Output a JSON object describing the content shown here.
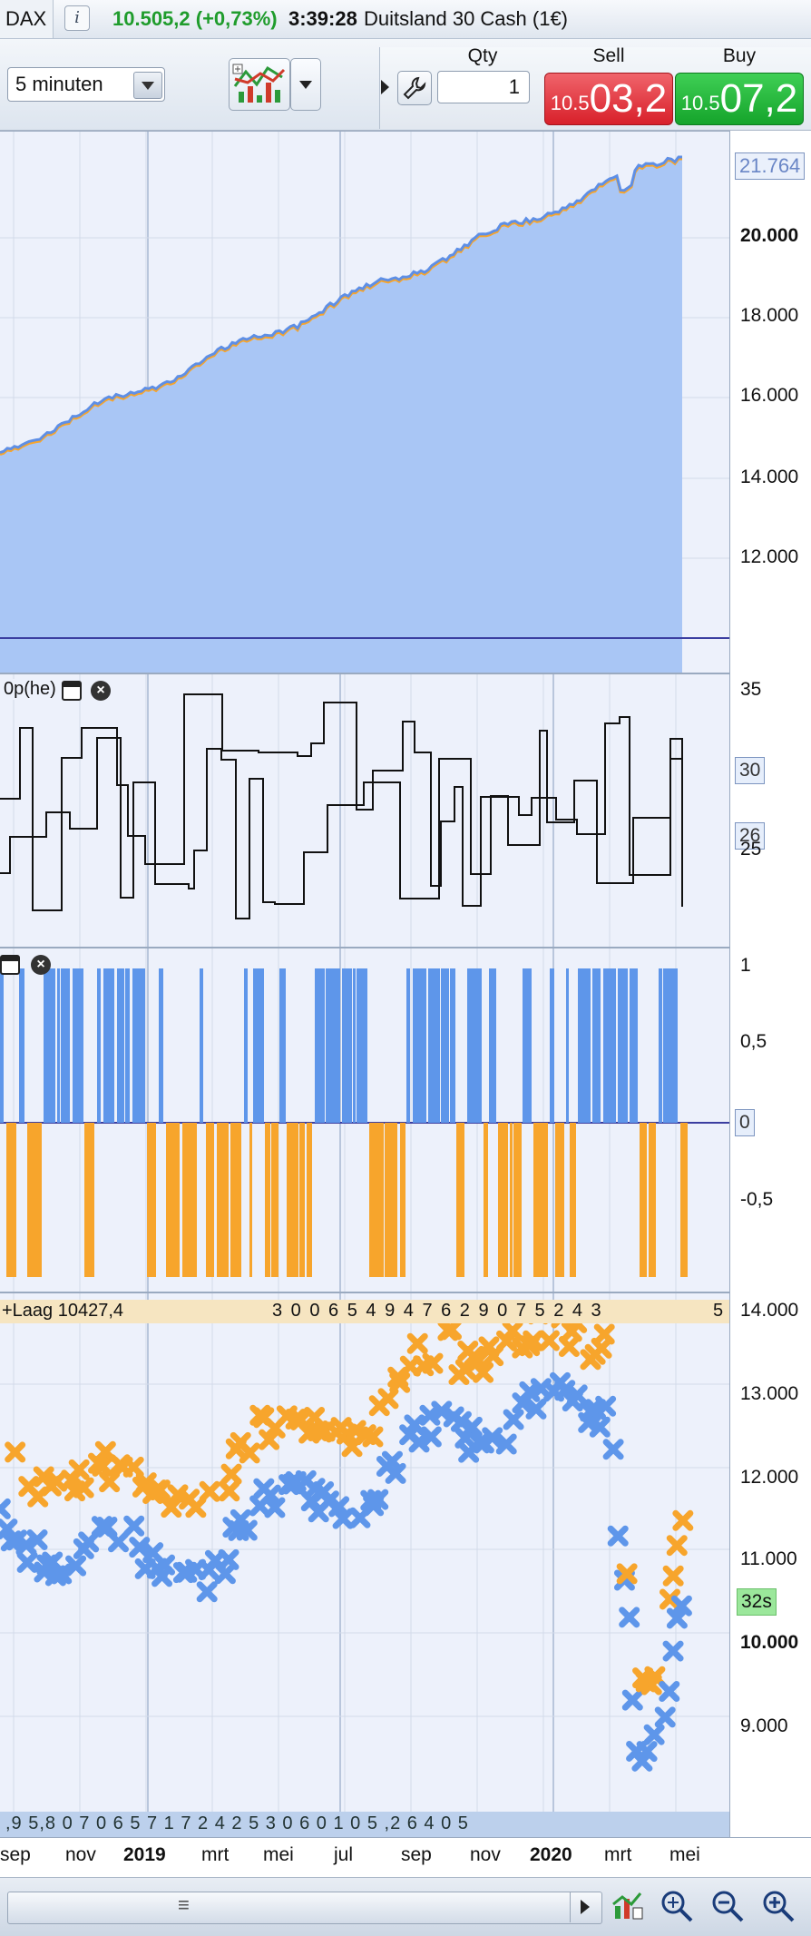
{
  "header": {
    "instrument_code": "DAX",
    "price_change": "10.505,2 (+0,73%)",
    "time": "3:39:28",
    "instrument_name": "Duitsland 30 Cash (1€)"
  },
  "toolbar": {
    "timeframe": "5 minuten",
    "qty_label": "Qty",
    "qty_value": "1",
    "sell_label": "Sell",
    "buy_label": "Buy",
    "sell_prefix": "10.5",
    "sell_main": "03,2",
    "buy_prefix": "10.5",
    "buy_main": "07,2"
  },
  "panels": {
    "equity": {
      "last_value": "21.764",
      "y_ticks": [
        "20.000",
        "18.000",
        "16.000",
        "14.000",
        "12.000"
      ]
    },
    "indicator2": {
      "label": "0p(he)",
      "y_ticks": [
        "35",
        "30",
        "26",
        "25"
      ]
    },
    "indicator3": {
      "y_ticks": [
        "1",
        "0,5",
        "0",
        "-0,5"
      ]
    },
    "price": {
      "label": "+Laag 10427,4",
      "label_digits": "3  0   0   6   5       4   9  4 7   6          2           9     0  7 5  2   4 3",
      "label_digit_right": "5",
      "y_ticks": [
        "14.000",
        "13.000",
        "12.000",
        "11.000",
        "10.000",
        "9.000"
      ],
      "timer": "32s",
      "bottom_digits": ",9    5,8 0 7 0 6 5 7        1          7 2   4 2   5 3 0   6 0           1 0        5  ,2 6     4      0      5"
    }
  },
  "x_axis": [
    {
      "label": "sep",
      "bold": false
    },
    {
      "label": "nov",
      "bold": false
    },
    {
      "label": "2019",
      "bold": true
    },
    {
      "label": "mrt",
      "bold": false
    },
    {
      "label": "mei",
      "bold": false
    },
    {
      "label": "jul",
      "bold": false
    },
    {
      "label": "sep",
      "bold": false
    },
    {
      "label": "nov",
      "bold": false
    },
    {
      "label": "2020",
      "bold": true
    },
    {
      "label": "mrt",
      "bold": false
    },
    {
      "label": "mei",
      "bold": false
    }
  ],
  "colors": {
    "equity_fill": "#a9c6f5",
    "equity_line": "#5e8fe6",
    "orange": "#f7a52c",
    "blue": "#5e96ea",
    "sell": "#e33a42",
    "buy": "#22b83a"
  },
  "icons": {
    "chart_type": "indicator-chart-icon",
    "wrench": "wrench-icon",
    "status": [
      "indicator-icon",
      "zoom-fit-icon",
      "zoom-out-icon",
      "zoom-in-icon"
    ]
  }
}
